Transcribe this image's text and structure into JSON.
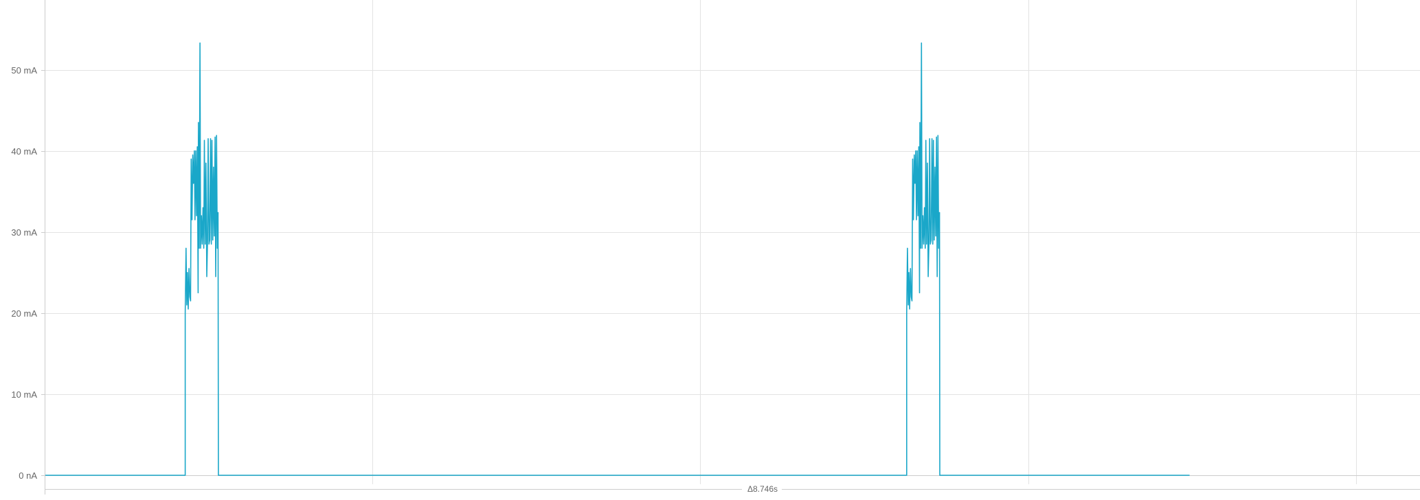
{
  "chart_data": {
    "type": "line",
    "title": "",
    "xlabel": "",
    "ylabel": "",
    "xlim": [
      0,
      8.746
    ],
    "ylim": [
      0,
      58.6
    ],
    "grid": true,
    "y_ticks": [
      {
        "value": 0,
        "label": "0 nA"
      },
      {
        "value": 10,
        "label": "10 mA"
      },
      {
        "value": 20,
        "label": "20 mA"
      },
      {
        "value": 30,
        "label": "30 mA"
      },
      {
        "value": 40,
        "label": "40 mA"
      },
      {
        "value": 50,
        "label": "50 mA"
      }
    ],
    "delta_label": "Δ8.746s",
    "color": "#1aa7c9",
    "series": [
      {
        "x": [
          0,
          0.89,
          0.89,
          0.895,
          0.9,
          0.904,
          0.909,
          0.914,
          0.919,
          0.924,
          0.928,
          0.933,
          0.938,
          0.943,
          0.948,
          0.952,
          0.957,
          0.962,
          0.967,
          0.972,
          0.974,
          0.979,
          0.984,
          0.988,
          0.993,
          0.998,
          1.003,
          1.008,
          1.012,
          1.017,
          1.022,
          1.027,
          1.032,
          1.036,
          1.041,
          1.046,
          1.051,
          1.056,
          1.06,
          1.065,
          1.07,
          1.075,
          1.08,
          1.084,
          1.089,
          1.094,
          1.099,
          1.101,
          5.48,
          5.48,
          5.485,
          5.49,
          5.494,
          5.499,
          5.504,
          5.509,
          5.514,
          5.518,
          5.523,
          5.528,
          5.533,
          5.538,
          5.542,
          5.547,
          5.552,
          5.557,
          5.562,
          5.564,
          5.569,
          5.574,
          5.578,
          5.583,
          5.588,
          5.593,
          5.598,
          5.602,
          5.607,
          5.612,
          5.617,
          5.622,
          5.626,
          5.631,
          5.636,
          5.641,
          5.646,
          5.65,
          5.655,
          5.66,
          5.665,
          5.67,
          5.674,
          5.679,
          5.684,
          5.689,
          5.691,
          7.28
        ],
        "y": [
          0,
          0,
          20,
          28,
          21,
          25,
          20.5,
          25.5,
          22,
          21.5,
          39,
          31.5,
          39.5,
          36,
          40,
          31.5,
          40,
          32,
          40.5,
          22.5,
          43.5,
          28,
          53.3,
          28,
          32,
          28.5,
          33,
          28,
          41.3,
          28.5,
          38.5,
          24.5,
          29,
          41.5,
          28.5,
          29,
          41.5,
          28.5,
          41.3,
          29,
          38,
          29.5,
          41.7,
          24.5,
          41.9,
          28,
          32.4,
          0,
          0,
          20,
          28,
          21,
          25,
          20.5,
          25.5,
          22,
          21.5,
          39,
          31.5,
          39.5,
          36,
          40,
          31.5,
          40,
          32,
          40.5,
          22.5,
          43.5,
          28,
          53.3,
          28,
          32,
          28.5,
          33,
          28,
          41.3,
          28.5,
          38.5,
          24.5,
          29,
          41.5,
          28.5,
          29,
          41.5,
          28.5,
          41.3,
          29,
          38,
          29.5,
          41.7,
          24.5,
          41.9,
          28,
          32.4,
          0,
          0
        ]
      }
    ]
  }
}
